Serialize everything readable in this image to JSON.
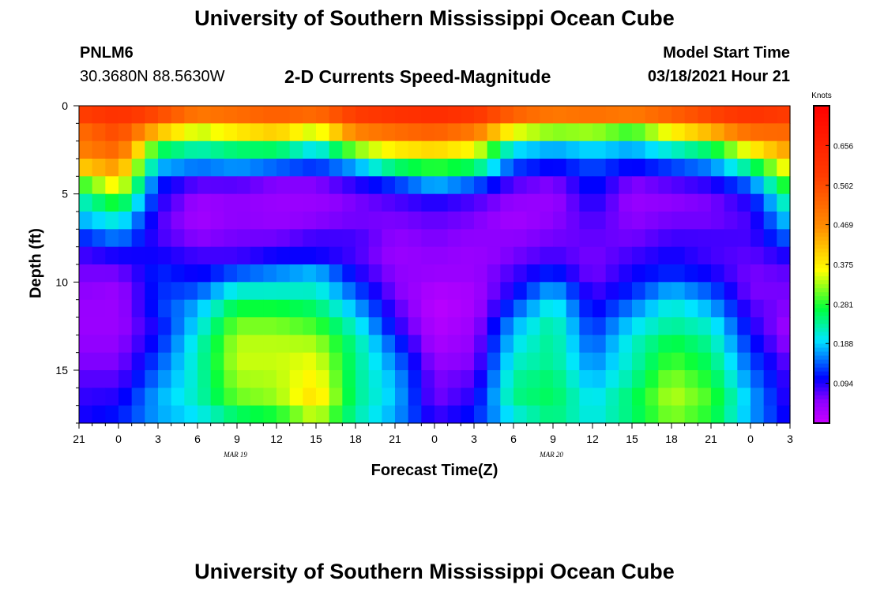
{
  "header": {
    "title": "University of Southern Mississippi Ocean Cube",
    "station_id": "PNLM6",
    "coordinates": "30.3680N 88.5630W",
    "chart_subtitle": "2-D Currents Speed-Magnitude",
    "model_start_label": "Model Start Time",
    "model_start_value": "03/18/2021 Hour 21"
  },
  "footer": {
    "title": "University of Southern Mississippi Ocean Cube"
  },
  "chart_data": {
    "type": "heatmap",
    "title": "2-D Currents Speed-Magnitude",
    "xlabel": "Forecast Time(Z)",
    "ylabel": "Depth (ft)",
    "x_ticks": [
      "21",
      "0",
      "3",
      "6",
      "9",
      "12",
      "15",
      "18",
      "21",
      "0",
      "3",
      "6",
      "9",
      "12",
      "15",
      "18",
      "21",
      "0",
      "3"
    ],
    "x_range_hours": [
      0,
      54
    ],
    "date_labels": [
      {
        "text": "MAR 19",
        "hour": 15
      },
      {
        "text": "MAR 20",
        "hour": 39
      }
    ],
    "y_ticks": [
      "0",
      "5",
      "10",
      "15"
    ],
    "y_range_ft": [
      0,
      18
    ],
    "colorbar": {
      "unit": "Knots",
      "ticks": [
        "0.656",
        "0.562",
        "0.469",
        "0.375",
        "0.281",
        "0.188",
        "0.094"
      ],
      "tick_values": [
        0.656,
        0.562,
        0.469,
        0.375,
        0.281,
        0.188,
        0.094
      ],
      "range": [
        0.0,
        0.75
      ]
    },
    "depth_rows_ft": [
      0.5,
      1.5,
      2.5,
      3.5,
      4.5,
      5.5,
      6.5,
      7.5,
      8.5,
      9.5,
      10.5,
      11.5,
      12.5,
      13.5,
      14.5,
      15.5,
      16.5,
      17.5
    ],
    "time_cols_h": [
      0,
      3,
      6,
      9,
      12,
      15,
      18,
      21,
      24,
      27,
      30,
      33,
      36,
      39,
      42,
      45,
      48,
      51,
      54
    ],
    "values_knots": [
      [
        0.63,
        0.65,
        0.62,
        0.58,
        0.57,
        0.58,
        0.6,
        0.62,
        0.64,
        0.65,
        0.64,
        0.6,
        0.58,
        0.6,
        0.62,
        0.6,
        0.62,
        0.64,
        0.62
      ],
      [
        0.52,
        0.58,
        0.5,
        0.4,
        0.45,
        0.48,
        0.42,
        0.55,
        0.58,
        0.6,
        0.56,
        0.45,
        0.4,
        0.4,
        0.35,
        0.45,
        0.52,
        0.58,
        0.55
      ],
      [
        0.5,
        0.55,
        0.3,
        0.25,
        0.28,
        0.3,
        0.22,
        0.38,
        0.42,
        0.44,
        0.4,
        0.22,
        0.2,
        0.22,
        0.2,
        0.25,
        0.3,
        0.42,
        0.48
      ],
      [
        0.45,
        0.48,
        0.2,
        0.18,
        0.2,
        0.18,
        0.15,
        0.2,
        0.3,
        0.32,
        0.3,
        0.15,
        0.12,
        0.14,
        0.12,
        0.15,
        0.18,
        0.28,
        0.4
      ],
      [
        0.3,
        0.4,
        0.12,
        0.08,
        0.08,
        0.06,
        0.06,
        0.1,
        0.14,
        0.2,
        0.16,
        0.08,
        0.06,
        0.12,
        0.06,
        0.08,
        0.1,
        0.16,
        0.32
      ],
      [
        0.22,
        0.3,
        0.1,
        0.04,
        0.05,
        0.04,
        0.04,
        0.06,
        0.08,
        0.1,
        0.08,
        0.05,
        0.04,
        0.1,
        0.04,
        0.05,
        0.06,
        0.1,
        0.25
      ],
      [
        0.18,
        0.22,
        0.08,
        0.03,
        0.05,
        0.04,
        0.05,
        0.06,
        0.06,
        0.07,
        0.06,
        0.03,
        0.05,
        0.08,
        0.05,
        0.06,
        0.06,
        0.08,
        0.2
      ],
      [
        0.12,
        0.16,
        0.08,
        0.05,
        0.06,
        0.06,
        0.08,
        0.08,
        0.05,
        0.06,
        0.05,
        0.05,
        0.06,
        0.07,
        0.06,
        0.08,
        0.08,
        0.08,
        0.15
      ],
      [
        0.08,
        0.1,
        0.1,
        0.08,
        0.08,
        0.1,
        0.1,
        0.08,
        0.04,
        0.05,
        0.04,
        0.06,
        0.08,
        0.06,
        0.08,
        0.1,
        0.08,
        0.07,
        0.1
      ],
      [
        0.06,
        0.06,
        0.12,
        0.1,
        0.14,
        0.16,
        0.18,
        0.1,
        0.05,
        0.04,
        0.04,
        0.08,
        0.12,
        0.06,
        0.1,
        0.12,
        0.1,
        0.06,
        0.07
      ],
      [
        0.05,
        0.04,
        0.12,
        0.14,
        0.22,
        0.22,
        0.22,
        0.14,
        0.06,
        0.02,
        0.03,
        0.1,
        0.18,
        0.08,
        0.12,
        0.18,
        0.14,
        0.06,
        0.06
      ],
      [
        0.04,
        0.04,
        0.12,
        0.18,
        0.28,
        0.28,
        0.26,
        0.18,
        0.08,
        0.01,
        0.03,
        0.14,
        0.22,
        0.1,
        0.16,
        0.22,
        0.18,
        0.08,
        0.05
      ],
      [
        0.04,
        0.04,
        0.1,
        0.2,
        0.32,
        0.32,
        0.3,
        0.22,
        0.1,
        0.02,
        0.04,
        0.18,
        0.24,
        0.12,
        0.2,
        0.24,
        0.22,
        0.1,
        0.03
      ],
      [
        0.05,
        0.05,
        0.12,
        0.22,
        0.34,
        0.34,
        0.34,
        0.24,
        0.14,
        0.03,
        0.05,
        0.2,
        0.24,
        0.14,
        0.22,
        0.28,
        0.24,
        0.12,
        0.05
      ],
      [
        0.06,
        0.06,
        0.14,
        0.22,
        0.34,
        0.34,
        0.36,
        0.24,
        0.16,
        0.05,
        0.06,
        0.22,
        0.24,
        0.16,
        0.22,
        0.3,
        0.26,
        0.14,
        0.07
      ],
      [
        0.08,
        0.08,
        0.16,
        0.22,
        0.32,
        0.33,
        0.38,
        0.24,
        0.18,
        0.06,
        0.08,
        0.24,
        0.26,
        0.18,
        0.24,
        0.33,
        0.28,
        0.16,
        0.08
      ],
      [
        0.09,
        0.1,
        0.18,
        0.22,
        0.3,
        0.32,
        0.4,
        0.24,
        0.18,
        0.06,
        0.1,
        0.24,
        0.26,
        0.2,
        0.26,
        0.34,
        0.3,
        0.18,
        0.08
      ],
      [
        0.1,
        0.12,
        0.16,
        0.18,
        0.22,
        0.24,
        0.3,
        0.22,
        0.16,
        0.1,
        0.12,
        0.18,
        0.24,
        0.2,
        0.24,
        0.3,
        0.26,
        0.16,
        0.1
      ]
    ]
  }
}
